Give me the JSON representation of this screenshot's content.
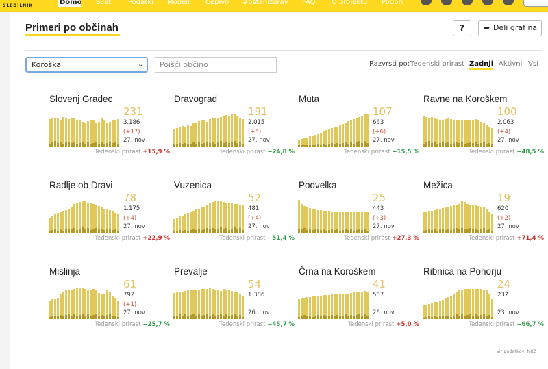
{
  "brand": {
    "logo": "SLEDILNIK"
  },
  "nav": [
    {
      "label": "Domov",
      "active": true
    },
    {
      "label": "Svet"
    },
    {
      "label": "Podatki"
    },
    {
      "label": "Modeli"
    },
    {
      "label": "Cepivo"
    },
    {
      "label": "#ostanizdrav"
    },
    {
      "label": "FAQ"
    },
    {
      "label": "O projektu"
    },
    {
      "label": "Podpri"
    }
  ],
  "colors": {
    "accent": "#ffd920",
    "bar": "#e0c85a",
    "bar_dark": "#b39a28",
    "increase": "#c9302c",
    "decrease": "#2e9a48"
  },
  "header": {
    "title": "Primeri po občinah",
    "help_label": "?",
    "share_label": "Deli graf na"
  },
  "controls": {
    "region_value": "Koroška",
    "search_placeholder": "Poišči občino",
    "sort_label": "Razvrsti po:",
    "sort_options": [
      {
        "label": "Tedenski prirast"
      },
      {
        "label": "Zadnji",
        "active": true
      },
      {
        "label": "Aktivni"
      },
      {
        "label": "Vsi"
      }
    ]
  },
  "growth_label": "Tedenski prirast",
  "municipalities": [
    {
      "name": "Slovenj Gradec",
      "active": "231",
      "total": "3.186",
      "new": "(+17)",
      "date": "27. nov",
      "growth": "+15,9 %",
      "trend": "up",
      "series": [
        0.82,
        0.84,
        0.86,
        0.84,
        0.8,
        0.88,
        0.85,
        0.82,
        0.83,
        0.86,
        0.8,
        0.77,
        0.73,
        0.69,
        0.75,
        0.8,
        0.78,
        0.71,
        0.73,
        0.83,
        0.77,
        0.69,
        0.73,
        0.8,
        0.79,
        0.81
      ]
    },
    {
      "name": "Dravograd",
      "active": "191",
      "total": "2.015",
      "new": "(+5)",
      "date": "27. nov",
      "growth": "−24,8 %",
      "trend": "down",
      "series": [
        0.53,
        0.55,
        0.58,
        0.61,
        0.6,
        0.63,
        0.61,
        0.7,
        0.72,
        0.75,
        0.77,
        0.78,
        0.74,
        0.82,
        0.83,
        0.84,
        0.85,
        0.88,
        0.92,
        0.94,
        0.92,
        0.96,
        0.95,
        0.9,
        0.85,
        0.82
      ]
    },
    {
      "name": "Muta",
      "active": "107",
      "total": "663",
      "new": "(+6)",
      "date": "27. nov",
      "growth": "−15,5 %",
      "trend": "down",
      "series": [
        0.2,
        0.22,
        0.25,
        0.27,
        0.3,
        0.32,
        0.34,
        0.36,
        0.4,
        0.45,
        0.48,
        0.5,
        0.55,
        0.58,
        0.6,
        0.65,
        0.68,
        0.7,
        0.75,
        0.78,
        0.82,
        0.85,
        0.88,
        0.92,
        0.95,
        0.97
      ]
    },
    {
      "name": "Ravne na Koroškem",
      "active": "100",
      "total": "2.063",
      "new": "(+4)",
      "date": "27. nov",
      "growth": "−48,5 %",
      "trend": "down",
      "series": [
        0.9,
        0.88,
        0.86,
        0.87,
        0.85,
        0.82,
        0.79,
        0.8,
        0.82,
        0.84,
        0.82,
        0.8,
        0.78,
        0.8,
        0.79,
        0.78,
        0.79,
        0.8,
        0.78,
        0.82,
        0.79,
        0.73,
        0.72,
        0.65,
        0.6,
        0.55
      ]
    },
    {
      "name": "Radlje ob Dravi",
      "active": "78",
      "total": "1.175",
      "new": "(+4)",
      "date": "27. nov",
      "growth": "+22,9 %",
      "trend": "up",
      "series": [
        0.45,
        0.52,
        0.58,
        0.6,
        0.62,
        0.65,
        0.68,
        0.72,
        0.78,
        0.85,
        0.9,
        0.92,
        0.95,
        0.93,
        0.9,
        0.88,
        0.85,
        0.82,
        0.8,
        0.75,
        0.72,
        0.7,
        0.68,
        0.65,
        0.6,
        0.55
      ]
    },
    {
      "name": "Vuzenica",
      "active": "52",
      "total": "481",
      "new": "(+4)",
      "date": "27. nov",
      "growth": "−51,4 %",
      "trend": "down",
      "series": [
        0.4,
        0.45,
        0.48,
        0.5,
        0.55,
        0.6,
        0.62,
        0.65,
        0.7,
        0.72,
        0.75,
        0.78,
        0.82,
        0.88,
        0.92,
        0.95,
        0.94,
        0.93,
        0.92,
        0.9,
        0.88,
        0.87,
        0.86,
        0.85,
        0.84,
        0.82
      ]
    },
    {
      "name": "Podvelka",
      "active": "25",
      "total": "443",
      "new": "(+3)",
      "date": "27. nov",
      "growth": "+27,3 %",
      "trend": "up",
      "series": [
        0.97,
        0.85,
        0.8,
        0.76,
        0.74,
        0.72,
        0.7,
        0.68,
        0.67,
        0.66,
        0.65,
        0.65,
        0.64,
        0.63,
        0.63,
        0.63,
        0.62,
        0.62,
        0.62,
        0.62,
        0.62,
        0.62,
        0.62,
        0.62,
        0.62,
        0.62
      ]
    },
    {
      "name": "Mežica",
      "active": "19",
      "total": "620",
      "new": "(+2)",
      "date": "27. nov",
      "growth": "+71,4 %",
      "trend": "up",
      "series": [
        0.62,
        0.64,
        0.65,
        0.66,
        0.68,
        0.7,
        0.72,
        0.74,
        0.76,
        0.78,
        0.8,
        0.82,
        0.84,
        0.85,
        0.93,
        0.92,
        0.85,
        0.84,
        0.82,
        0.82,
        0.8,
        0.78,
        0.75,
        0.7,
        0.62,
        0.55
      ]
    },
    {
      "name": "Mislinja",
      "active": "61",
      "total": "792",
      "new": "(+1)",
      "date": "27. nov",
      "growth": "−25,7 %",
      "trend": "down",
      "series": [
        0.55,
        0.6,
        0.6,
        0.62,
        0.74,
        0.82,
        0.85,
        0.86,
        0.86,
        0.9,
        0.92,
        0.93,
        0.94,
        0.9,
        0.85,
        0.88,
        0.9,
        0.85,
        0.78,
        0.75,
        0.75,
        0.85,
        0.82,
        0.7,
        0.62,
        0.55
      ]
    },
    {
      "name": "Prevalje",
      "active": "54",
      "total": "1.386",
      "new": "",
      "date": "26. nov",
      "growth": "−45,7 %",
      "trend": "down",
      "series": [
        0.78,
        0.8,
        0.82,
        0.82,
        0.84,
        0.86,
        0.86,
        0.88,
        0.88,
        0.88,
        0.9,
        0.9,
        0.9,
        0.92,
        0.9,
        0.88,
        0.86,
        0.84,
        0.9,
        0.88,
        0.86,
        0.84,
        0.82,
        0.8,
        0.76,
        0.7
      ]
    },
    {
      "name": "Črna na Koroškem",
      "active": "41",
      "total": "587",
      "new": "",
      "date": "26. nov",
      "growth": "+5,0 %",
      "trend": "up",
      "series": [
        0.6,
        0.62,
        0.64,
        0.65,
        0.66,
        0.68,
        0.7,
        0.7,
        0.7,
        0.72,
        0.72,
        0.72,
        0.74,
        0.74,
        0.75,
        0.75,
        0.75,
        0.76,
        0.76,
        0.78,
        0.8,
        0.82,
        0.82,
        0.82,
        0.84,
        0.8
      ]
    },
    {
      "name": "Ribnica na Pohorju",
      "active": "24",
      "total": "232",
      "new": "",
      "date": "23. nov",
      "growth": "−66,7 %",
      "trend": "down",
      "series": [
        0.4,
        0.42,
        0.45,
        0.48,
        0.5,
        0.52,
        0.55,
        0.58,
        0.62,
        0.66,
        0.7,
        0.75,
        0.8,
        0.85,
        0.88,
        0.9,
        0.9,
        0.9,
        0.9,
        0.9,
        0.9,
        0.9,
        0.88,
        0.85,
        0.75,
        0.6
      ]
    }
  ],
  "footer": {
    "source": "vir podatkov: NIJZ"
  }
}
